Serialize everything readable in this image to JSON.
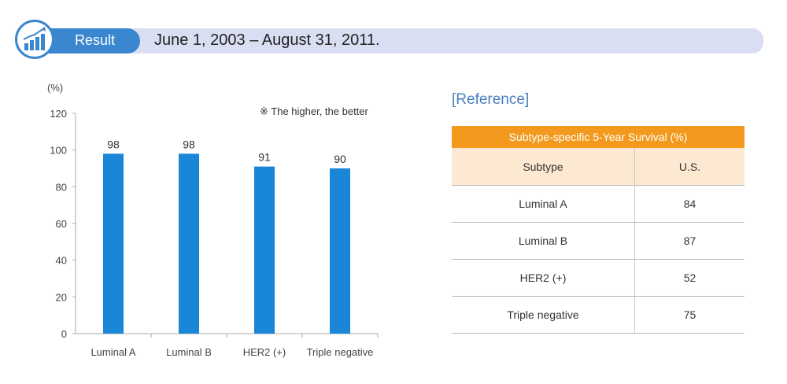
{
  "header": {
    "result_label": "Result",
    "date_range": "June 1, 2003 – August 31, 2011."
  },
  "chart_note": "※ The higher, the better",
  "chart_data": {
    "type": "bar",
    "categories": [
      "Luminal A",
      "Luminal B",
      "HER2 (+)",
      "Triple negative"
    ],
    "values": [
      98,
      98,
      91,
      90
    ],
    "ylabel": "(%)",
    "ylim": [
      0,
      120
    ],
    "yticks": [
      0,
      20,
      40,
      60,
      80,
      100,
      120
    ],
    "bar_color": "#1a86d8",
    "grid": false
  },
  "reference": {
    "title": "[Reference]",
    "caption": "Subtype-specific 5-Year Survival (%)",
    "caption_color": "#f39a1e",
    "columns": [
      "Subtype",
      "U.S."
    ],
    "rows": [
      {
        "subtype": "Luminal A",
        "us": "84"
      },
      {
        "subtype": "Luminal B",
        "us": "87"
      },
      {
        "subtype": "HER2 (+)",
        "us": "52"
      },
      {
        "subtype": "Triple negative",
        "us": "75"
      }
    ]
  }
}
